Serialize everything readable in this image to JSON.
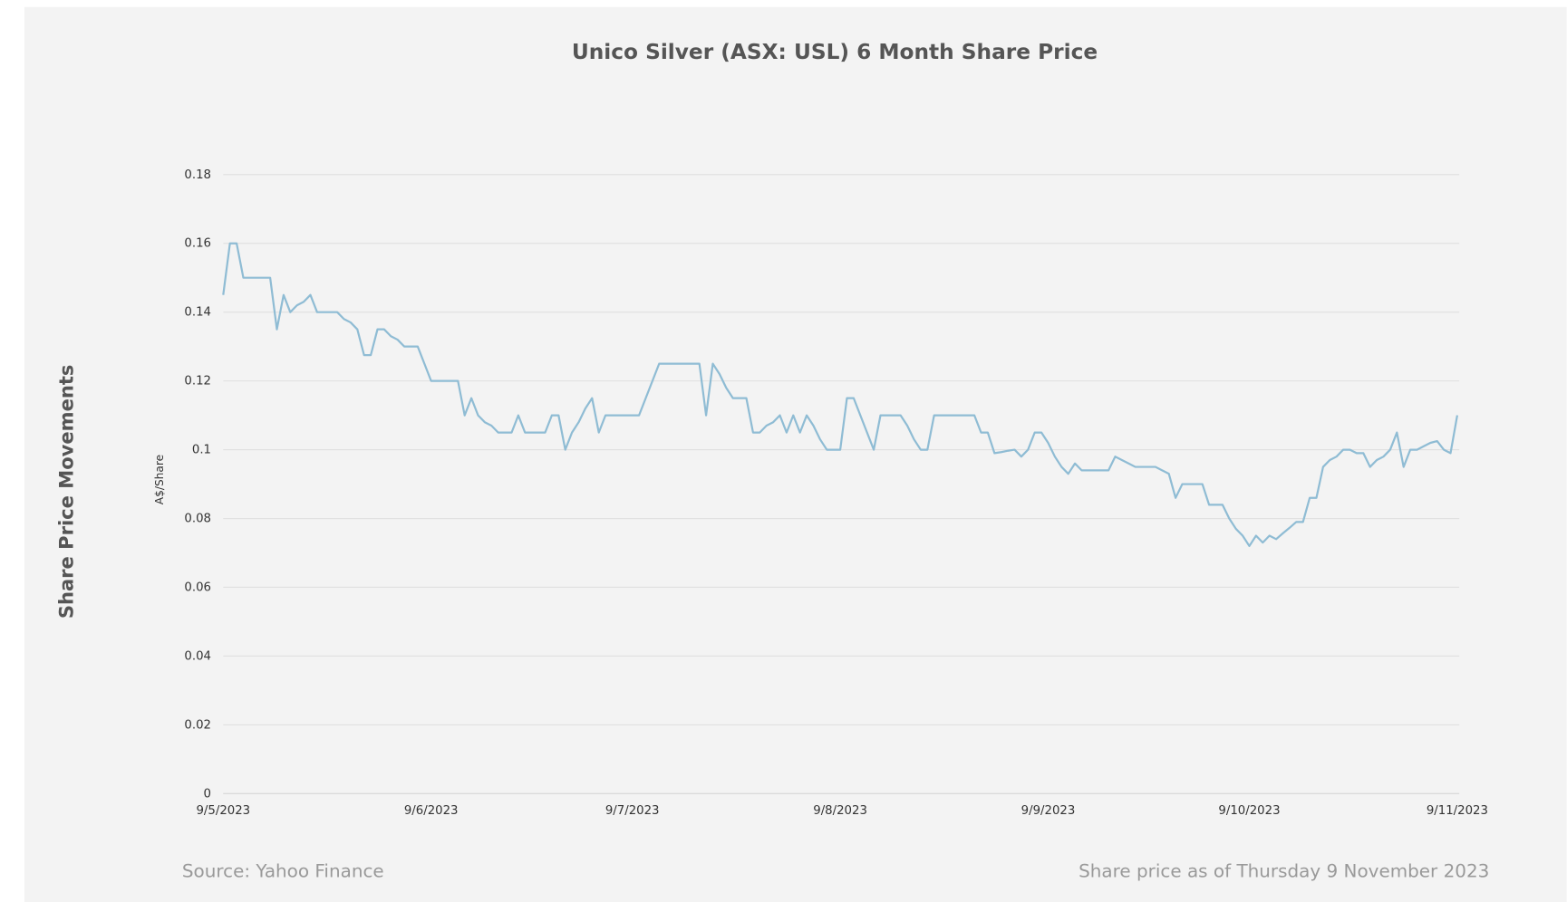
{
  "chart_data": {
    "type": "line",
    "title": "Unico Silver (ASX: USL) 6 Month Share Price",
    "side_label": "Share Price Movements",
    "ylabel": "A$/Share",
    "source": "Source: Yahoo Finance",
    "note": "Share price as of Thursday 9 November 2023",
    "categories": [
      "9/5/2023",
      null,
      null,
      null,
      null,
      null,
      null,
      null,
      null,
      null,
      null,
      null,
      null,
      null,
      null,
      null,
      null,
      null,
      null,
      null,
      null,
      null,
      null,
      null,
      null,
      null,
      null,
      null,
      null,
      null,
      null,
      "9/6/2023",
      null,
      null,
      null,
      null,
      null,
      null,
      null,
      null,
      null,
      null,
      null,
      null,
      null,
      null,
      null,
      null,
      null,
      null,
      null,
      null,
      null,
      null,
      null,
      null,
      null,
      null,
      null,
      null,
      null,
      "9/7/2023",
      null,
      null,
      null,
      null,
      null,
      null,
      null,
      null,
      null,
      null,
      null,
      null,
      null,
      null,
      null,
      null,
      null,
      null,
      null,
      null,
      null,
      null,
      null,
      null,
      null,
      null,
      null,
      null,
      null,
      null,
      "9/8/2023",
      null,
      null,
      null,
      null,
      null,
      null,
      null,
      null,
      null,
      null,
      null,
      null,
      null,
      null,
      null,
      null,
      null,
      null,
      null,
      null,
      null,
      null,
      null,
      null,
      null,
      null,
      null,
      null,
      null,
      null,
      "9/9/2023",
      null,
      null,
      null,
      null,
      null,
      null,
      null,
      null,
      null,
      null,
      null,
      null,
      null,
      null,
      null,
      null,
      null,
      null,
      null,
      null,
      null,
      null,
      null,
      null,
      null,
      null,
      null,
      null,
      null,
      "9/10/2023",
      null,
      null,
      null,
      null,
      null,
      null,
      null,
      null,
      null,
      null,
      null,
      null,
      null,
      null,
      null,
      null,
      null,
      null,
      null,
      null,
      null,
      null,
      null,
      null,
      null,
      null,
      null,
      null,
      null,
      null,
      "9/11/2023"
    ],
    "series": [
      {
        "name": "USL",
        "color": "#8fbcd4",
        "values": [
          0.145,
          0.16,
          0.16,
          0.15,
          0.15,
          0.15,
          0.15,
          0.15,
          0.135,
          0.145,
          0.14,
          0.142,
          0.143,
          0.145,
          0.14,
          0.14,
          0.14,
          0.14,
          0.138,
          0.137,
          0.135,
          0.1275,
          0.1275,
          0.135,
          0.135,
          0.133,
          0.132,
          0.13,
          0.13,
          0.13,
          0.125,
          0.12,
          0.12,
          0.12,
          0.12,
          0.12,
          0.11,
          0.115,
          0.11,
          0.108,
          0.107,
          0.105,
          0.105,
          0.105,
          0.11,
          0.105,
          0.105,
          0.105,
          0.105,
          0.11,
          0.11,
          0.1,
          0.105,
          0.108,
          0.112,
          0.115,
          0.105,
          0.11,
          0.11,
          0.11,
          0.11,
          0.11,
          0.11,
          0.115,
          0.12,
          0.125,
          0.125,
          0.125,
          0.125,
          0.125,
          0.125,
          0.125,
          0.11,
          0.125,
          0.122,
          0.118,
          0.115,
          0.115,
          0.115,
          0.105,
          0.105,
          0.107,
          0.108,
          0.11,
          0.105,
          0.11,
          0.105,
          0.11,
          0.107,
          0.103,
          0.1,
          0.1,
          0.1,
          0.115,
          0.115,
          0.11,
          0.105,
          0.1,
          0.11,
          0.11,
          0.11,
          0.11,
          0.107,
          0.103,
          0.1,
          0.1,
          0.11,
          0.11,
          0.11,
          0.11,
          0.11,
          0.11,
          0.11,
          0.105,
          0.105,
          0.099,
          0.0993,
          0.0997,
          0.1,
          0.098,
          0.1,
          0.105,
          0.105,
          0.102,
          0.098,
          0.095,
          0.093,
          0.096,
          0.094,
          0.094,
          0.094,
          0.094,
          0.094,
          0.098,
          0.097,
          0.096,
          0.095,
          0.095,
          0.095,
          0.095,
          0.094,
          0.093,
          0.086,
          0.09,
          0.09,
          0.09,
          0.09,
          0.084,
          0.084,
          0.084,
          0.08,
          0.077,
          0.075,
          0.072,
          0.075,
          0.073,
          0.075,
          0.074,
          0.0757,
          0.0773,
          0.079,
          0.079,
          0.086,
          0.086,
          0.095,
          0.097,
          0.098,
          0.1,
          0.1,
          0.099,
          0.099,
          0.095,
          0.097,
          0.098,
          0.1,
          0.105,
          0.095,
          0.1,
          0.1,
          0.101,
          0.102,
          0.1025,
          0.1,
          0.099,
          0.11
        ]
      }
    ],
    "ylim": [
      0,
      0.18
    ],
    "yticks": [
      0,
      0.02,
      0.04,
      0.06,
      0.08,
      0.1,
      0.12,
      0.14,
      0.16,
      0.18
    ],
    "grid": true
  }
}
